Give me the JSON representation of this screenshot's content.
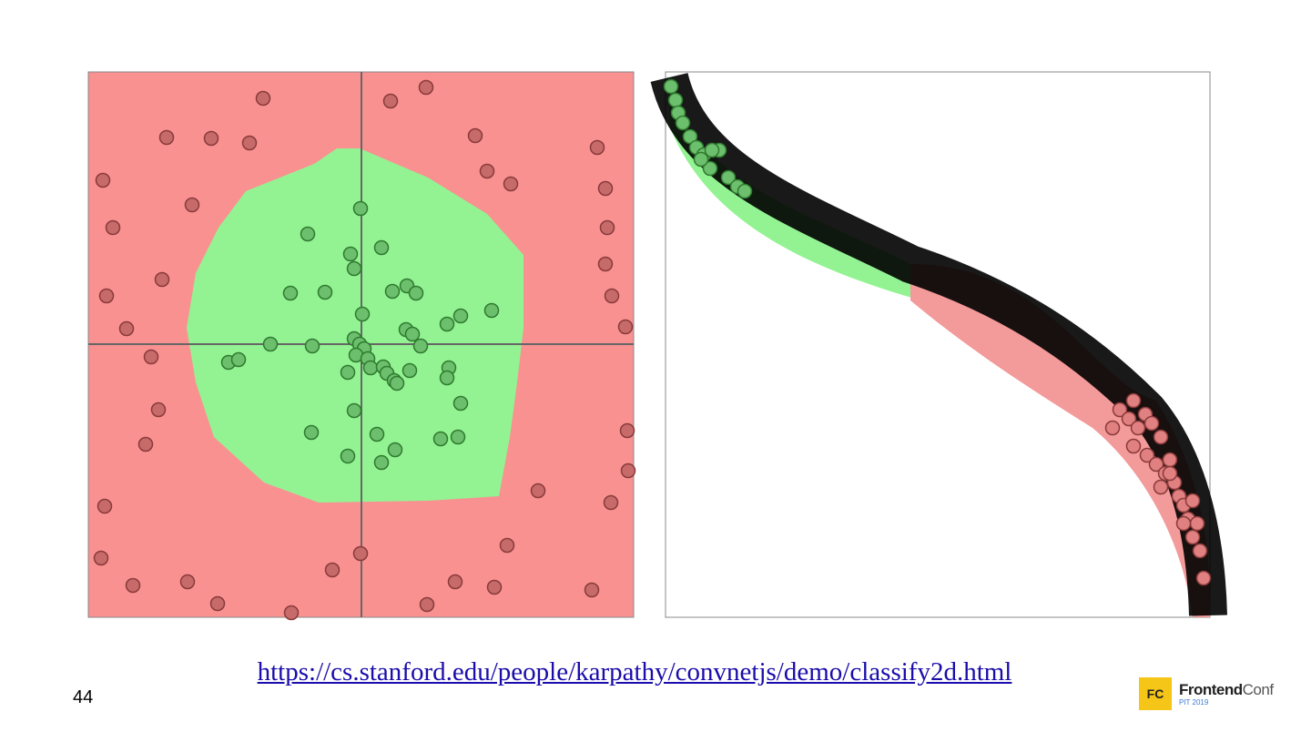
{
  "slide": {
    "link": "https://cs.stanford.edu/people/karpathy/convnetjs/demo/classify2d.html",
    "page_number": "44",
    "logo": {
      "badge": "FC",
      "name_bold": "Frontend",
      "name_light": "Conf",
      "event": "PIT 2019"
    }
  }
}
